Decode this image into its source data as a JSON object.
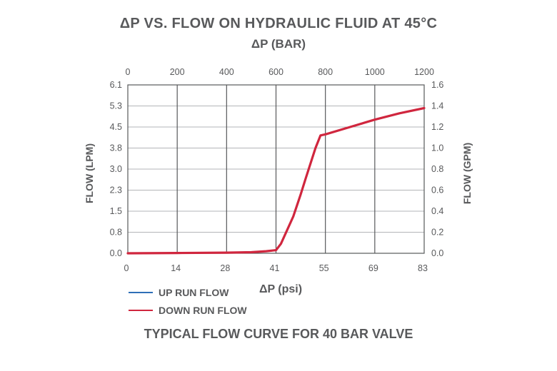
{
  "chart_data": {
    "type": "line",
    "title": "ΔP VS. FLOW ON HYDRAULIC FLUID AT 45°C",
    "top_axis_label": "ΔP  (BAR)",
    "xlabel": "ΔP  (psi)",
    "ylabel_left": "FLOW (LPM)",
    "ylabel_right": "FLOW (GPM)",
    "footer": "TYPICAL FLOW CURVE FOR 40 BAR VALVE",
    "x_ticks_bottom": [
      "0",
      "14",
      "28",
      "41",
      "55",
      "69",
      "83"
    ],
    "x_ticks_top": [
      "0",
      "200",
      "400",
      "600",
      "800",
      "1000",
      "1200"
    ],
    "y_ticks_left": [
      "0.0",
      "0.8",
      "1.5",
      "2.3",
      "3.0",
      "3.8",
      "4.5",
      "5.3",
      "6.1"
    ],
    "y_ticks_right": [
      "0.0",
      "0.2",
      "0.4",
      "0.6",
      "0.8",
      "1.0",
      "1.2",
      "1.4",
      "1.6"
    ],
    "xlim": [
      0,
      1200
    ],
    "ylim": [
      0,
      1.6
    ],
    "x_units": "psi",
    "y_units": "GPM",
    "grid": true,
    "legend": [
      {
        "label": "UP RUN FLOW",
        "color": "#2e6fb7"
      },
      {
        "label": "DOWN RUN FLOW",
        "color": "#d0263e"
      }
    ],
    "series": [
      {
        "name": "UP RUN FLOW",
        "color": "#2e6fb7",
        "x": [
          0,
          200,
          400,
          500,
          560,
          600,
          620,
          670,
          700,
          720,
          760,
          780,
          800,
          900,
          1000,
          1100,
          1200
        ],
        "y": [
          0,
          0.003,
          0.006,
          0.01,
          0.02,
          0.03,
          0.09,
          0.35,
          0.56,
          0.71,
          1.0,
          1.12,
          1.13,
          1.2,
          1.27,
          1.33,
          1.38
        ]
      },
      {
        "name": "DOWN RUN FLOW",
        "color": "#d0263e",
        "x": [
          0,
          200,
          400,
          500,
          560,
          600,
          620,
          670,
          700,
          720,
          760,
          780,
          800,
          900,
          1000,
          1100,
          1200
        ],
        "y": [
          0,
          0.003,
          0.006,
          0.01,
          0.02,
          0.03,
          0.09,
          0.35,
          0.56,
          0.71,
          1.0,
          1.12,
          1.13,
          1.2,
          1.27,
          1.33,
          1.38
        ]
      }
    ]
  }
}
